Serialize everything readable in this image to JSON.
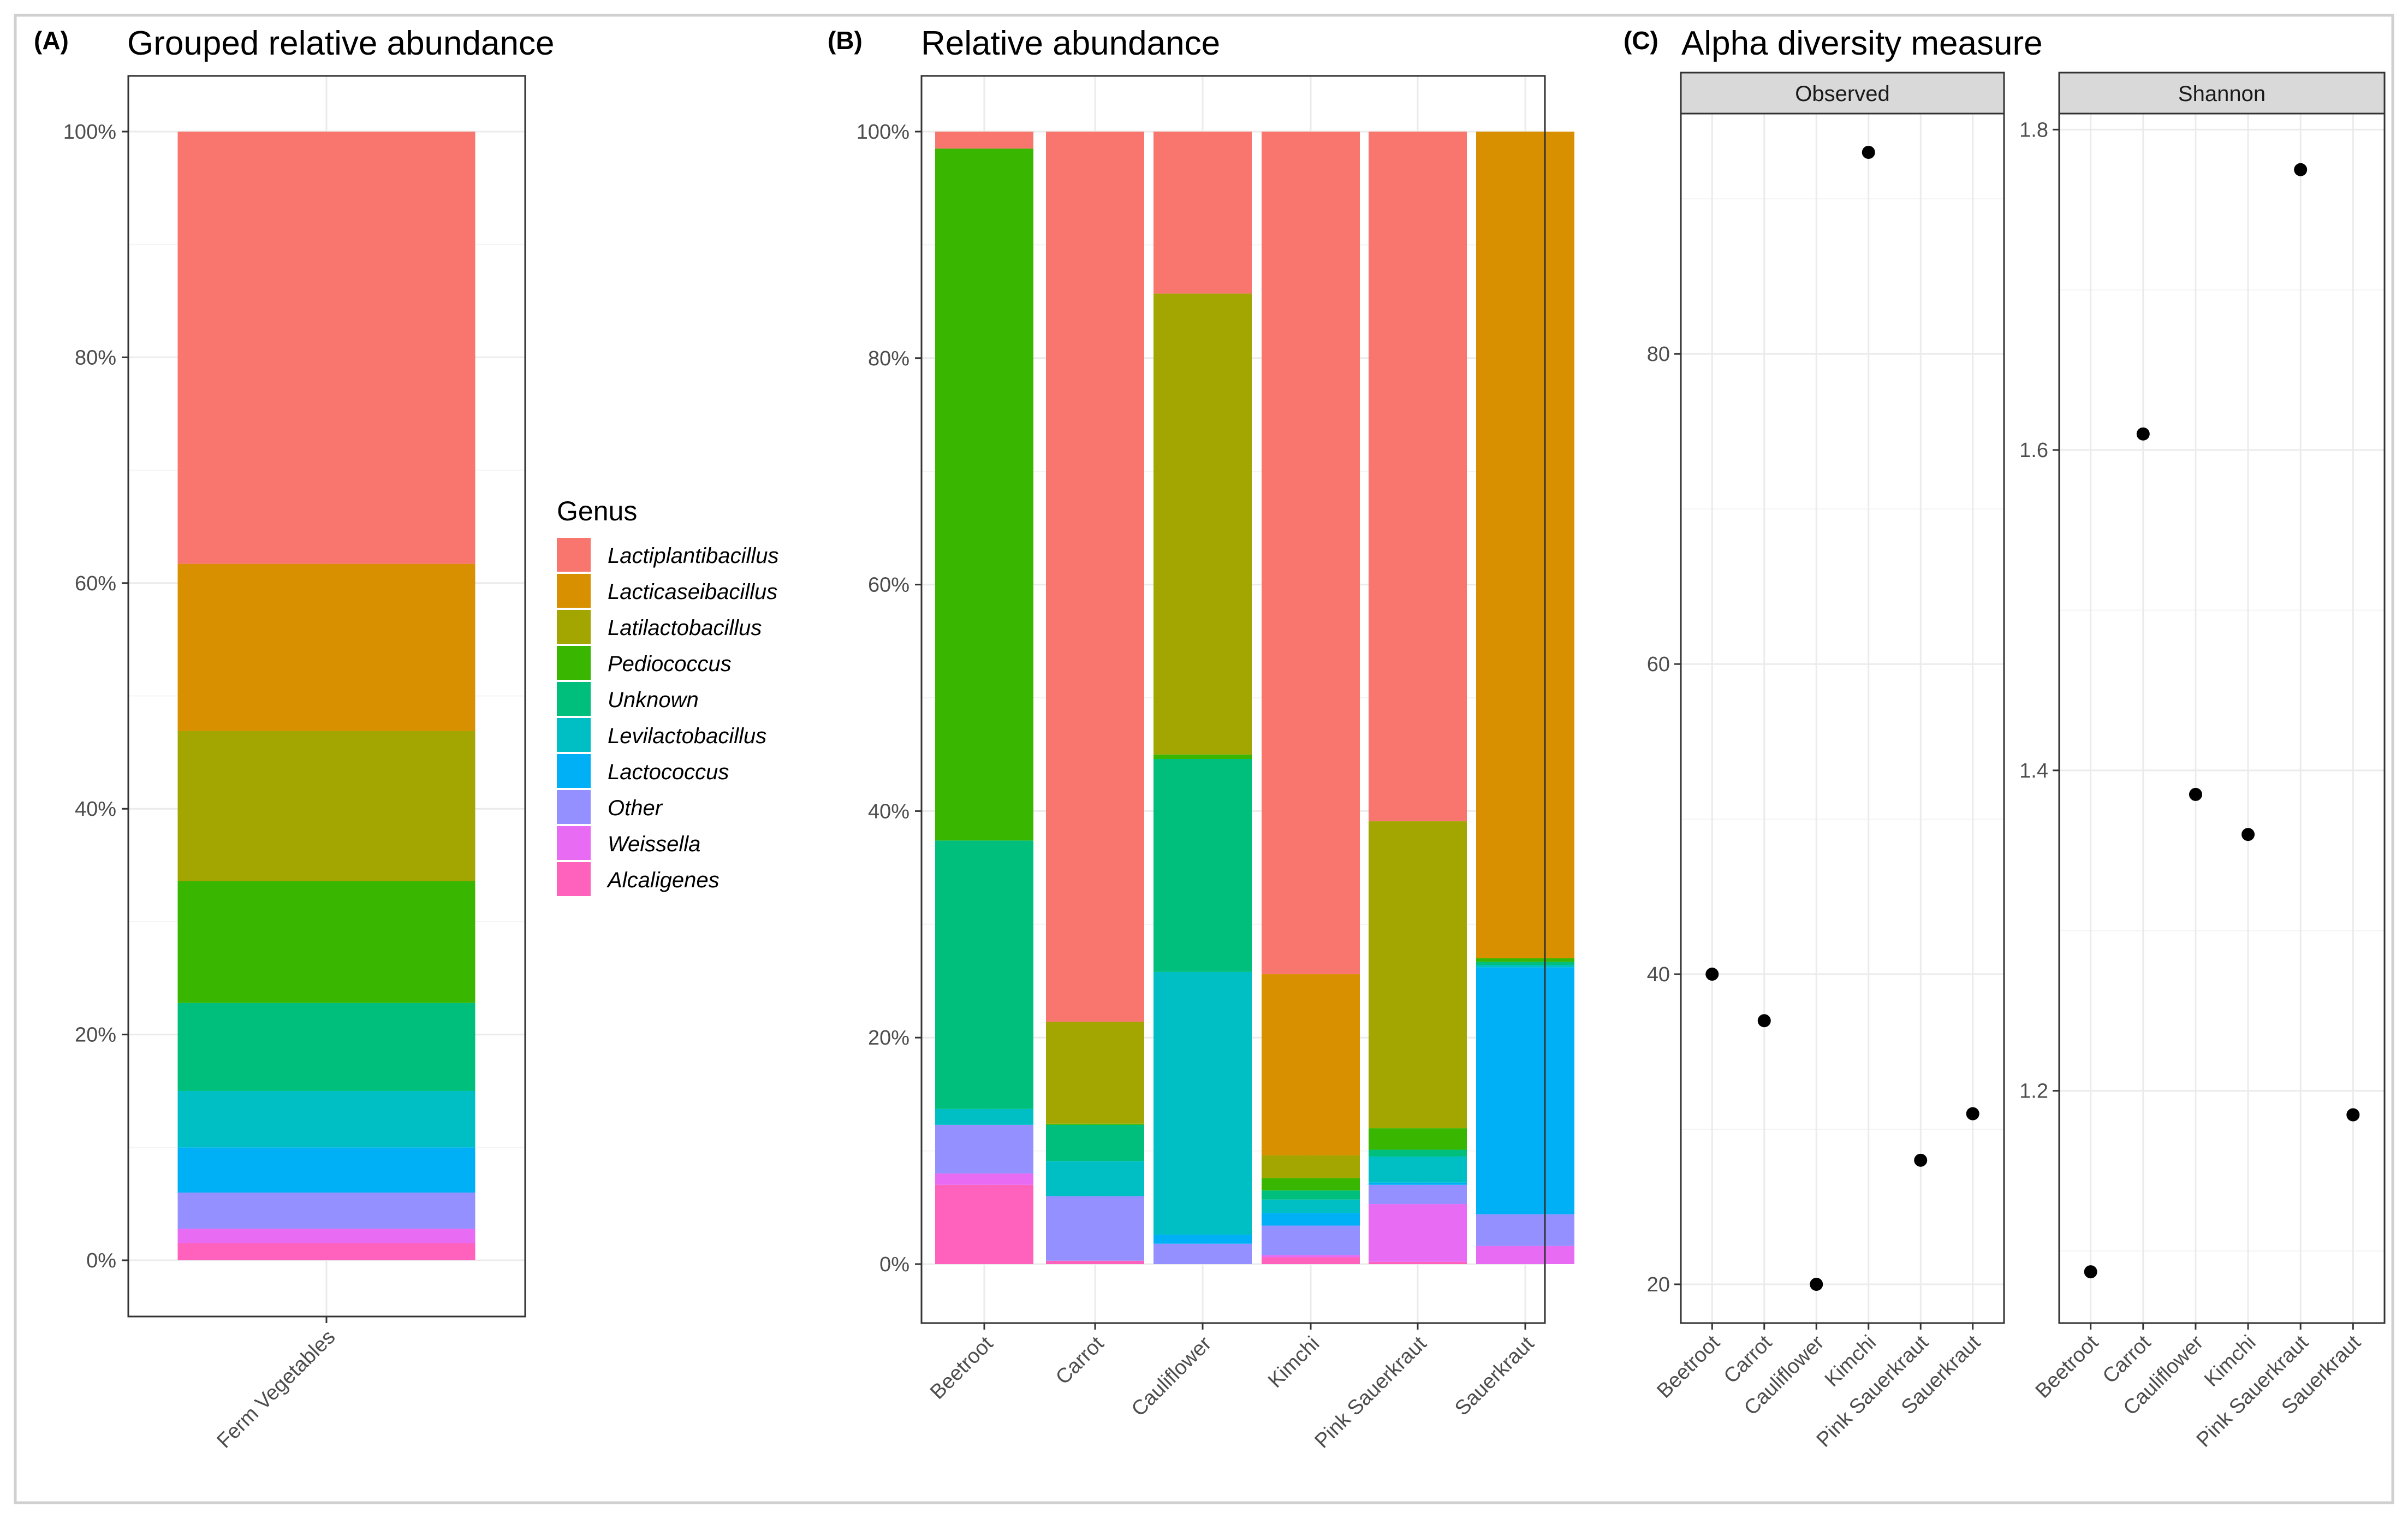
{
  "genera": [
    {
      "name": "Lactiplantibacillus",
      "color": "#F8766D"
    },
    {
      "name": "Lacticaseibacillus",
      "color": "#D89000"
    },
    {
      "name": "Latilactobacillus",
      "color": "#A3A500"
    },
    {
      "name": "Pediococcus",
      "color": "#39B600"
    },
    {
      "name": "Unknown",
      "color": "#00BF7D"
    },
    {
      "name": "Levilactobacillus",
      "color": "#00BFC4"
    },
    {
      "name": "Lactococcus",
      "color": "#00B0F6"
    },
    {
      "name": "Other",
      "color": "#9590FF"
    },
    {
      "name": "Weissella",
      "color": "#E76BF3"
    },
    {
      "name": "Alcaligenes",
      "color": "#FF62BC"
    }
  ],
  "legend": {
    "title": "Genus"
  },
  "chart_data": [
    {
      "id": "A",
      "panel_label": "(A)",
      "type": "bar",
      "stacked": true,
      "title": "Grouped relative abundance",
      "categories": [
        "Ferm Vegetables"
      ],
      "ylim": [
        0,
        100
      ],
      "yticks": [
        "0%",
        "20%",
        "40%",
        "60%",
        "80%",
        "100%"
      ],
      "series": [
        {
          "name": "Alcaligenes",
          "values": [
            1.5
          ]
        },
        {
          "name": "Weissella",
          "values": [
            1.3
          ]
        },
        {
          "name": "Other",
          "values": [
            3.2
          ]
        },
        {
          "name": "Lactococcus",
          "values": [
            4.0
          ]
        },
        {
          "name": "Levilactobacillus",
          "values": [
            5.0
          ]
        },
        {
          "name": "Unknown",
          "values": [
            7.8
          ]
        },
        {
          "name": "Pediococcus",
          "values": [
            10.8
          ]
        },
        {
          "name": "Latilactobacillus",
          "values": [
            13.3
          ]
        },
        {
          "name": "Lacticaseibacillus",
          "values": [
            14.8
          ]
        },
        {
          "name": "Lactiplantibacillus",
          "values": [
            38.3
          ]
        }
      ]
    },
    {
      "id": "B",
      "panel_label": "(B)",
      "type": "bar",
      "stacked": true,
      "title": "Relative abundance",
      "categories": [
        "Beetroot",
        "Carrot",
        "Cauliflower",
        "Kimchi",
        "Pink Sauerkraut",
        "Sauerkraut"
      ],
      "ylim": [
        0,
        100
      ],
      "yticks": [
        "0%",
        "20%",
        "40%",
        "60%",
        "80%",
        "100%"
      ],
      "series": [
        {
          "name": "Alcaligenes",
          "values": [
            7.0,
            0.3,
            0.0,
            0.6,
            0.2,
            0.0
          ]
        },
        {
          "name": "Weissella",
          "values": [
            1.0,
            0.0,
            0.0,
            0.2,
            5.1,
            1.6
          ]
        },
        {
          "name": "Other",
          "values": [
            4.3,
            5.7,
            1.8,
            2.6,
            1.7,
            2.8
          ]
        },
        {
          "name": "Lactococcus",
          "values": [
            0.0,
            0.0,
            0.8,
            1.1,
            0.2,
            21.8
          ]
        },
        {
          "name": "Levilactobacillus",
          "values": [
            1.4,
            3.1,
            23.2,
            1.2,
            2.3,
            0.2
          ]
        },
        {
          "name": "Unknown",
          "values": [
            23.7,
            3.2,
            18.8,
            0.8,
            0.6,
            0.3
          ]
        },
        {
          "name": "Pediococcus",
          "values": [
            61.1,
            0.1,
            0.4,
            1.1,
            1.9,
            0.3
          ]
        },
        {
          "name": "Latilactobacillus",
          "values": [
            0.0,
            9.0,
            40.7,
            2.0,
            27.1,
            0.0
          ]
        },
        {
          "name": "Lacticaseibacillus",
          "values": [
            0.0,
            0.0,
            0.0,
            16.0,
            0.0,
            73.0
          ]
        },
        {
          "name": "Lactiplantibacillus",
          "values": [
            1.5,
            78.6,
            14.3,
            74.4,
            60.9,
            0.0
          ]
        }
      ]
    },
    {
      "id": "C",
      "panel_label": "(C)",
      "type": "scatter",
      "title": "Alpha diversity measure",
      "categories": [
        "Beetroot",
        "Carrot",
        "Cauliflower",
        "Kimchi",
        "Pink Sauerkraut",
        "Sauerkraut"
      ],
      "facets": [
        {
          "name": "Observed",
          "values": [
            40,
            37,
            20,
            93,
            28,
            31
          ],
          "ylim": [
            17.5,
            95.5
          ],
          "yticks": [
            20,
            40,
            60,
            80
          ]
        },
        {
          "name": "Shannon",
          "values": [
            1.087,
            1.61,
            1.385,
            1.36,
            1.775,
            1.185
          ],
          "ylim": [
            1.055,
            1.81
          ],
          "yticks": [
            1.2,
            1.4,
            1.6,
            1.8
          ]
        }
      ]
    }
  ]
}
